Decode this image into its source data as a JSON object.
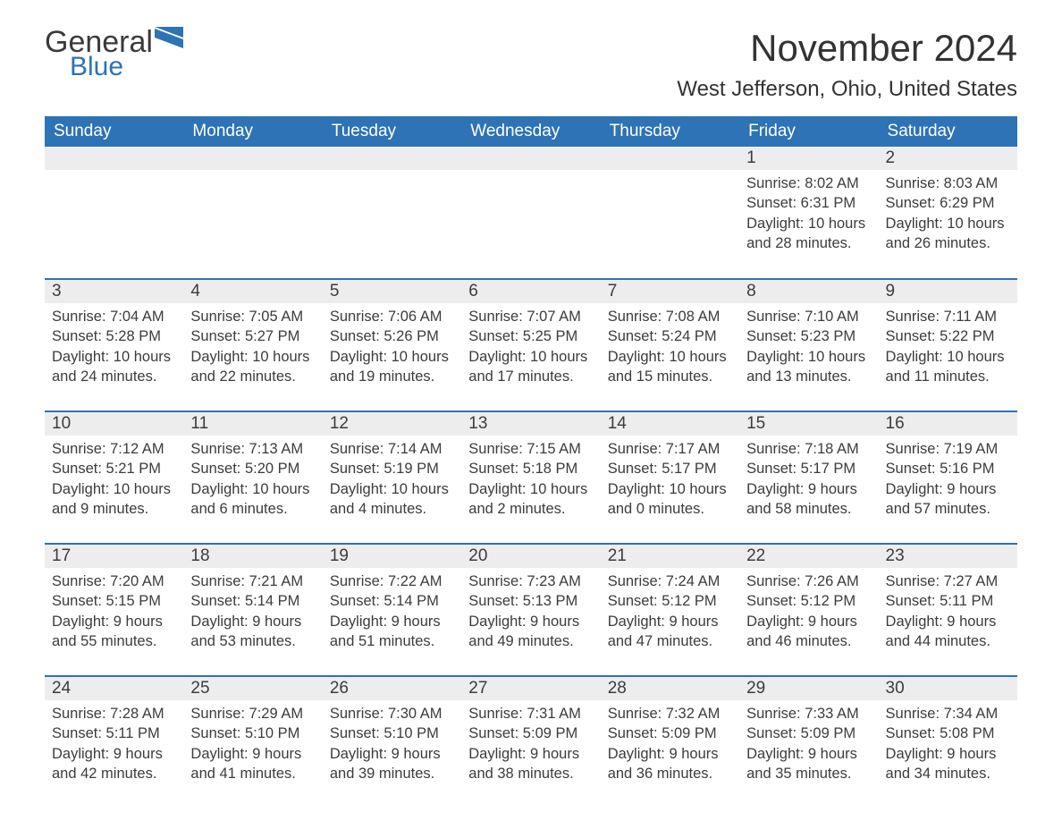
{
  "brand": {
    "word1": "General",
    "word2": "Blue"
  },
  "title": "November 2024",
  "location": "West Jefferson, Ohio, United States",
  "colors": {
    "header_bg": "#2d73b5",
    "header_text": "#ffffff",
    "daybar_bg": "#ededed",
    "text": "#3c3c3c",
    "rule": "#2d73b5",
    "page_bg": "#ffffff"
  },
  "typography": {
    "title_fontsize": 42,
    "location_fontsize": 24,
    "header_fontsize": 19,
    "daynum_fontsize": 19,
    "body_fontsize": 16.5
  },
  "layout": {
    "columns": 7,
    "rows": 5
  },
  "columns": [
    "Sunday",
    "Monday",
    "Tuesday",
    "Wednesday",
    "Thursday",
    "Friday",
    "Saturday"
  ],
  "weeks": [
    [
      null,
      null,
      null,
      null,
      null,
      {
        "n": "1",
        "sr": "8:02 AM",
        "ss": "6:31 PM",
        "dl": "10 hours and 28 minutes."
      },
      {
        "n": "2",
        "sr": "8:03 AM",
        "ss": "6:29 PM",
        "dl": "10 hours and 26 minutes."
      }
    ],
    [
      {
        "n": "3",
        "sr": "7:04 AM",
        "ss": "5:28 PM",
        "dl": "10 hours and 24 minutes."
      },
      {
        "n": "4",
        "sr": "7:05 AM",
        "ss": "5:27 PM",
        "dl": "10 hours and 22 minutes."
      },
      {
        "n": "5",
        "sr": "7:06 AM",
        "ss": "5:26 PM",
        "dl": "10 hours and 19 minutes."
      },
      {
        "n": "6",
        "sr": "7:07 AM",
        "ss": "5:25 PM",
        "dl": "10 hours and 17 minutes."
      },
      {
        "n": "7",
        "sr": "7:08 AM",
        "ss": "5:24 PM",
        "dl": "10 hours and 15 minutes."
      },
      {
        "n": "8",
        "sr": "7:10 AM",
        "ss": "5:23 PM",
        "dl": "10 hours and 13 minutes."
      },
      {
        "n": "9",
        "sr": "7:11 AM",
        "ss": "5:22 PM",
        "dl": "10 hours and 11 minutes."
      }
    ],
    [
      {
        "n": "10",
        "sr": "7:12 AM",
        "ss": "5:21 PM",
        "dl": "10 hours and 9 minutes."
      },
      {
        "n": "11",
        "sr": "7:13 AM",
        "ss": "5:20 PM",
        "dl": "10 hours and 6 minutes."
      },
      {
        "n": "12",
        "sr": "7:14 AM",
        "ss": "5:19 PM",
        "dl": "10 hours and 4 minutes."
      },
      {
        "n": "13",
        "sr": "7:15 AM",
        "ss": "5:18 PM",
        "dl": "10 hours and 2 minutes."
      },
      {
        "n": "14",
        "sr": "7:17 AM",
        "ss": "5:17 PM",
        "dl": "10 hours and 0 minutes."
      },
      {
        "n": "15",
        "sr": "7:18 AM",
        "ss": "5:17 PM",
        "dl": "9 hours and 58 minutes."
      },
      {
        "n": "16",
        "sr": "7:19 AM",
        "ss": "5:16 PM",
        "dl": "9 hours and 57 minutes."
      }
    ],
    [
      {
        "n": "17",
        "sr": "7:20 AM",
        "ss": "5:15 PM",
        "dl": "9 hours and 55 minutes."
      },
      {
        "n": "18",
        "sr": "7:21 AM",
        "ss": "5:14 PM",
        "dl": "9 hours and 53 minutes."
      },
      {
        "n": "19",
        "sr": "7:22 AM",
        "ss": "5:14 PM",
        "dl": "9 hours and 51 minutes."
      },
      {
        "n": "20",
        "sr": "7:23 AM",
        "ss": "5:13 PM",
        "dl": "9 hours and 49 minutes."
      },
      {
        "n": "21",
        "sr": "7:24 AM",
        "ss": "5:12 PM",
        "dl": "9 hours and 47 minutes."
      },
      {
        "n": "22",
        "sr": "7:26 AM",
        "ss": "5:12 PM",
        "dl": "9 hours and 46 minutes."
      },
      {
        "n": "23",
        "sr": "7:27 AM",
        "ss": "5:11 PM",
        "dl": "9 hours and 44 minutes."
      }
    ],
    [
      {
        "n": "24",
        "sr": "7:28 AM",
        "ss": "5:11 PM",
        "dl": "9 hours and 42 minutes."
      },
      {
        "n": "25",
        "sr": "7:29 AM",
        "ss": "5:10 PM",
        "dl": "9 hours and 41 minutes."
      },
      {
        "n": "26",
        "sr": "7:30 AM",
        "ss": "5:10 PM",
        "dl": "9 hours and 39 minutes."
      },
      {
        "n": "27",
        "sr": "7:31 AM",
        "ss": "5:09 PM",
        "dl": "9 hours and 38 minutes."
      },
      {
        "n": "28",
        "sr": "7:32 AM",
        "ss": "5:09 PM",
        "dl": "9 hours and 36 minutes."
      },
      {
        "n": "29",
        "sr": "7:33 AM",
        "ss": "5:09 PM",
        "dl": "9 hours and 35 minutes."
      },
      {
        "n": "30",
        "sr": "7:34 AM",
        "ss": "5:08 PM",
        "dl": "9 hours and 34 minutes."
      }
    ]
  ],
  "labels": {
    "sunrise": "Sunrise: ",
    "sunset": "Sunset: ",
    "daylight": "Daylight: "
  }
}
